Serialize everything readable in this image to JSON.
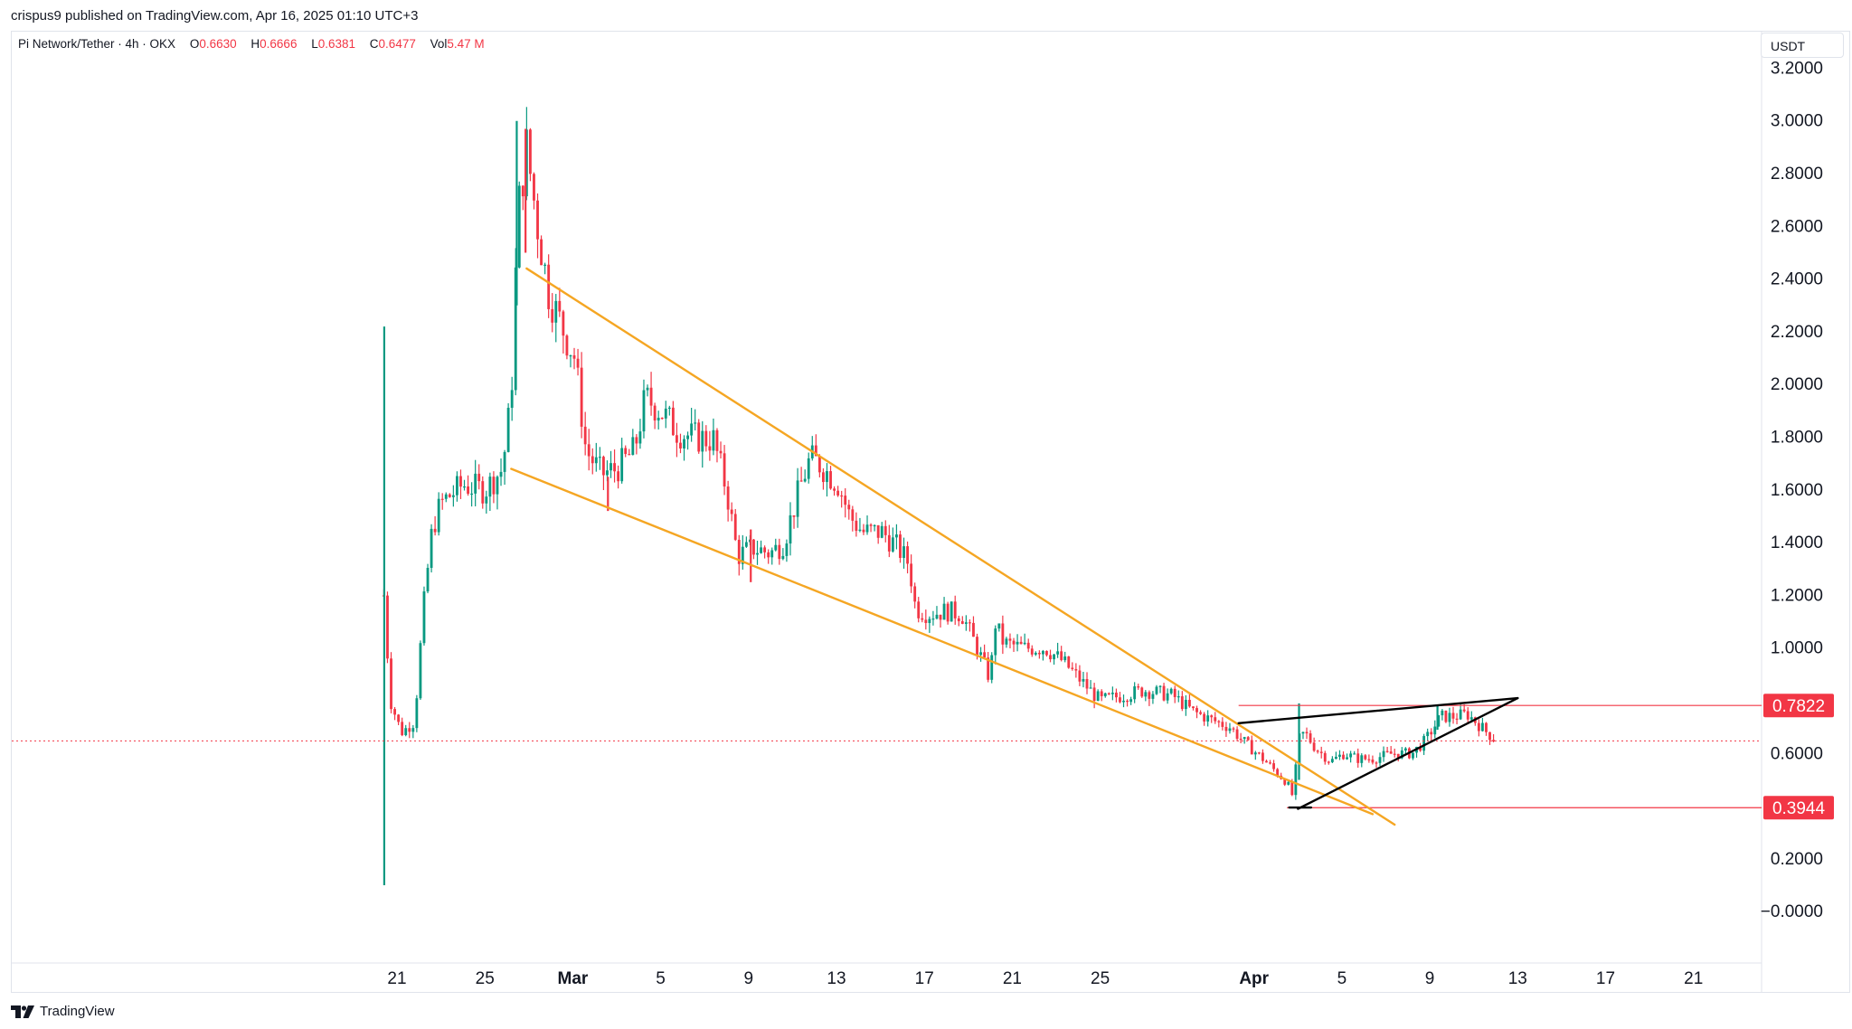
{
  "header": {
    "published": "crispus9 published on TradingView.com, Apr 16, 2025 01:10 UTC+3"
  },
  "legend": {
    "symbol": "Pi Network/Tether · 4h · OKX",
    "open_label": "O",
    "open": "0.6630",
    "high_label": "H",
    "high": "0.6666",
    "low_label": "L",
    "low": "0.6381",
    "close_label": "C",
    "close": "0.6477",
    "vol_label": "Vol",
    "vol": "5.47 M"
  },
  "currency_button": "USDT",
  "footer": {
    "brand": "TradingView",
    "logo_icon": "tradingview-logo-icon"
  },
  "colors": {
    "up": "#089981",
    "down": "#f23645",
    "wedge": "#f5a623",
    "pattern": "#000000",
    "level": "#f23645"
  },
  "chart_data": {
    "type": "candlestick",
    "timeframe": "4h",
    "ylim": [
      -0.12,
      3.32
    ],
    "y_ticks": [
      "3.2000",
      "3.0000",
      "2.8000",
      "2.6000",
      "2.4000",
      "2.2000",
      "2.0000",
      "1.8000",
      "1.6000",
      "1.4000",
      "1.2000",
      "1.0000",
      "0.8000",
      "0.6000",
      "0.4000",
      "0.2000",
      "−0.0000"
    ],
    "x_ticks": [
      {
        "label": "21",
        "day": 0
      },
      {
        "label": "25",
        "day": 4
      },
      {
        "label": "Mar",
        "day": 8
      },
      {
        "label": "5",
        "day": 12
      },
      {
        "label": "9",
        "day": 16
      },
      {
        "label": "13",
        "day": 20
      },
      {
        "label": "17",
        "day": 24
      },
      {
        "label": "21",
        "day": 28
      },
      {
        "label": "25",
        "day": 32
      },
      {
        "label": "Apr",
        "day": 39
      },
      {
        "label": "5",
        "day": 43
      },
      {
        "label": "9",
        "day": 47
      },
      {
        "label": "13",
        "day": 51
      },
      {
        "label": "17",
        "day": 55
      },
      {
        "label": "21",
        "day": 59
      }
    ],
    "close_anchors": [
      [
        -0.6,
        1.2
      ],
      [
        -0.3,
        0.8
      ],
      [
        0.2,
        0.68
      ],
      [
        0.8,
        0.72
      ],
      [
        1.2,
        1.15
      ],
      [
        1.6,
        1.45
      ],
      [
        2.0,
        1.55
      ],
      [
        3.0,
        1.62
      ],
      [
        4.0,
        1.6
      ],
      [
        4.8,
        1.68
      ],
      [
        5.2,
        1.95
      ],
      [
        5.5,
        2.65
      ],
      [
        5.9,
        2.9
      ],
      [
        6.4,
        2.6
      ],
      [
        6.9,
        2.35
      ],
      [
        7.6,
        2.2
      ],
      [
        8.1,
        2.1
      ],
      [
        8.6,
        1.75
      ],
      [
        9.3,
        1.66
      ],
      [
        10.0,
        1.68
      ],
      [
        10.8,
        1.75
      ],
      [
        11.3,
        1.95
      ],
      [
        12.0,
        1.9
      ],
      [
        12.8,
        1.82
      ],
      [
        13.5,
        1.8
      ],
      [
        14.4,
        1.79
      ],
      [
        15.0,
        1.6
      ],
      [
        15.5,
        1.35
      ],
      [
        16.2,
        1.38
      ],
      [
        17.0,
        1.36
      ],
      [
        17.6,
        1.4
      ],
      [
        18.3,
        1.6
      ],
      [
        18.8,
        1.72
      ],
      [
        19.2,
        1.7
      ],
      [
        20.1,
        1.62
      ],
      [
        20.6,
        1.5
      ],
      [
        21.2,
        1.44
      ],
      [
        22.1,
        1.44
      ],
      [
        22.8,
        1.38
      ],
      [
        23.3,
        1.32
      ],
      [
        23.6,
        1.15
      ],
      [
        24.2,
        1.13
      ],
      [
        25.0,
        1.14
      ],
      [
        25.7,
        1.13
      ],
      [
        26.4,
        1.0
      ],
      [
        27.0,
        0.88
      ],
      [
        27.2,
        1.1
      ],
      [
        27.6,
        1.02
      ],
      [
        28.5,
        1.0
      ],
      [
        29.5,
        1.0
      ],
      [
        30.3,
        0.95
      ],
      [
        31.2,
        0.87
      ],
      [
        32.0,
        0.8
      ],
      [
        33.0,
        0.82
      ],
      [
        34.0,
        0.84
      ],
      [
        35.3,
        0.82
      ],
      [
        36.2,
        0.76
      ],
      [
        37.0,
        0.73
      ],
      [
        37.9,
        0.7
      ],
      [
        38.6,
        0.64
      ],
      [
        39.4,
        0.58
      ],
      [
        40.5,
        0.49
      ],
      [
        40.8,
        0.43
      ],
      [
        41.0,
        0.65
      ],
      [
        41.3,
        0.68
      ],
      [
        41.8,
        0.62
      ],
      [
        42.5,
        0.57
      ],
      [
        43.1,
        0.6
      ],
      [
        43.7,
        0.58
      ],
      [
        44.4,
        0.58
      ],
      [
        45.3,
        0.6
      ],
      [
        46.2,
        0.6
      ],
      [
        46.8,
        0.65
      ],
      [
        47.5,
        0.74
      ],
      [
        48.1,
        0.74
      ],
      [
        48.7,
        0.75
      ],
      [
        49.1,
        0.72
      ],
      [
        49.6,
        0.68
      ],
      [
        50.0,
        0.65
      ]
    ],
    "wicks": [
      {
        "day": -0.58,
        "high": 2.22,
        "low": 0.1,
        "up": true
      },
      {
        "day": 5.45,
        "high": 3.0,
        "low": 2.3,
        "up": true
      },
      {
        "day": 5.85,
        "high": 2.97,
        "low": 2.5,
        "up": false
      },
      {
        "day": 9.6,
        "high": 1.65,
        "low": 1.52,
        "up": false
      },
      {
        "day": 16.1,
        "high": 1.45,
        "low": 1.25,
        "up": false
      },
      {
        "day": 41.05,
        "high": 0.79,
        "low": 0.5,
        "up": true
      },
      {
        "day": 47.35,
        "high": 0.78,
        "low": 0.69,
        "up": true
      }
    ],
    "trendlines": [
      {
        "name": "falling-wedge-upper",
        "color": "wedge",
        "from": [
          5.9,
          2.44
        ],
        "to": [
          45.4,
          0.33
        ]
      },
      {
        "name": "falling-wedge-lower",
        "color": "wedge",
        "from": [
          5.2,
          1.68
        ],
        "to": [
          44.4,
          0.37
        ]
      },
      {
        "name": "rising-wedge-upper",
        "color": "pattern",
        "from": [
          38.3,
          0.715
        ],
        "to": [
          51.0,
          0.81
        ]
      },
      {
        "name": "rising-wedge-lower",
        "color": "pattern",
        "from": [
          41.0,
          0.39
        ],
        "to": [
          51.0,
          0.81
        ]
      },
      {
        "name": "low-marker",
        "color": "pattern",
        "from": [
          40.6,
          0.395
        ],
        "to": [
          41.6,
          0.395
        ]
      }
    ],
    "levels": [
      {
        "name": "resistance",
        "value": 0.7822,
        "label": "0.7822",
        "from_day": 38.3
      },
      {
        "name": "support",
        "value": 0.3944,
        "label": "0.3944",
        "from_day": 40.5
      }
    ],
    "last_price": 0.6477
  }
}
